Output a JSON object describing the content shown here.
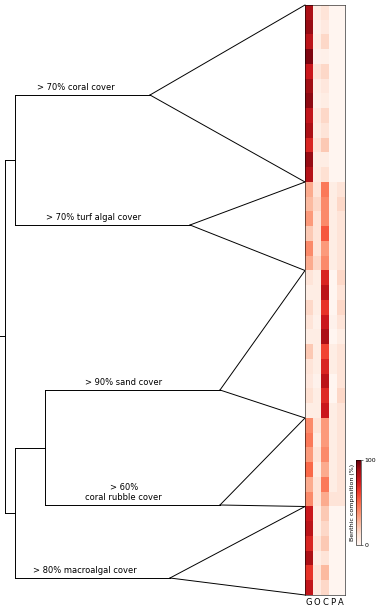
{
  "chart_data": {
    "type": "heatmap",
    "columns": [
      "G",
      "O",
      "C",
      "P",
      "A"
    ],
    "tick_labels": "x",
    "color": "Reds",
    "clusters": [
      {
        "label": "> 70% coral cover",
        "rows": 12
      },
      {
        "label": "> 70% turf algal cover",
        "rows": 6
      },
      {
        "label": "> 90% sand cover",
        "rows": 10
      },
      {
        "label": "> 60%\ncoral rubble cover",
        "rows": 6
      },
      {
        "label": "> 80% macroalgal cover",
        "rows": 6
      }
    ],
    "cells": [
      [
        85,
        5,
        10,
        0,
        0
      ],
      [
        90,
        3,
        7,
        0,
        0
      ],
      [
        80,
        5,
        15,
        0,
        0
      ],
      [
        95,
        2,
        3,
        0,
        0
      ],
      [
        75,
        10,
        15,
        0,
        0
      ],
      [
        88,
        4,
        8,
        0,
        0
      ],
      [
        92,
        3,
        5,
        0,
        0
      ],
      [
        78,
        7,
        15,
        0,
        0
      ],
      [
        85,
        5,
        10,
        0,
        0
      ],
      [
        70,
        10,
        20,
        0,
        0
      ],
      [
        90,
        5,
        5,
        0,
        0
      ],
      [
        82,
        6,
        12,
        0,
        0
      ],
      [
        30,
        10,
        45,
        5,
        10
      ],
      [
        25,
        15,
        40,
        5,
        15
      ],
      [
        35,
        10,
        40,
        5,
        10
      ],
      [
        20,
        10,
        55,
        5,
        10
      ],
      [
        40,
        10,
        35,
        5,
        10
      ],
      [
        30,
        15,
        40,
        5,
        10
      ],
      [
        10,
        5,
        70,
        0,
        15
      ],
      [
        5,
        5,
        80,
        0,
        10
      ],
      [
        15,
        5,
        65,
        0,
        15
      ],
      [
        10,
        3,
        75,
        2,
        10
      ],
      [
        5,
        5,
        85,
        0,
        5
      ],
      [
        20,
        5,
        60,
        5,
        10
      ],
      [
        10,
        5,
        70,
        5,
        10
      ],
      [
        8,
        2,
        80,
        0,
        10
      ],
      [
        12,
        5,
        68,
        0,
        15
      ],
      [
        5,
        5,
        75,
        5,
        10
      ],
      [
        40,
        10,
        35,
        5,
        10
      ],
      [
        45,
        5,
        35,
        5,
        10
      ],
      [
        35,
        10,
        40,
        5,
        10
      ],
      [
        50,
        5,
        30,
        5,
        10
      ],
      [
        30,
        10,
        45,
        5,
        10
      ],
      [
        40,
        10,
        30,
        10,
        10
      ],
      [
        75,
        5,
        20,
        0,
        0
      ],
      [
        80,
        5,
        15,
        0,
        0
      ],
      [
        70,
        10,
        20,
        0,
        0
      ],
      [
        85,
        5,
        10,
        0,
        0
      ],
      [
        65,
        10,
        25,
        0,
        0
      ],
      [
        78,
        7,
        15,
        0,
        0
      ]
    ],
    "colorbar": {
      "label": "Benthic composition (%)",
      "range": [
        0,
        100
      ],
      "ticks": [
        0,
        100
      ]
    }
  }
}
